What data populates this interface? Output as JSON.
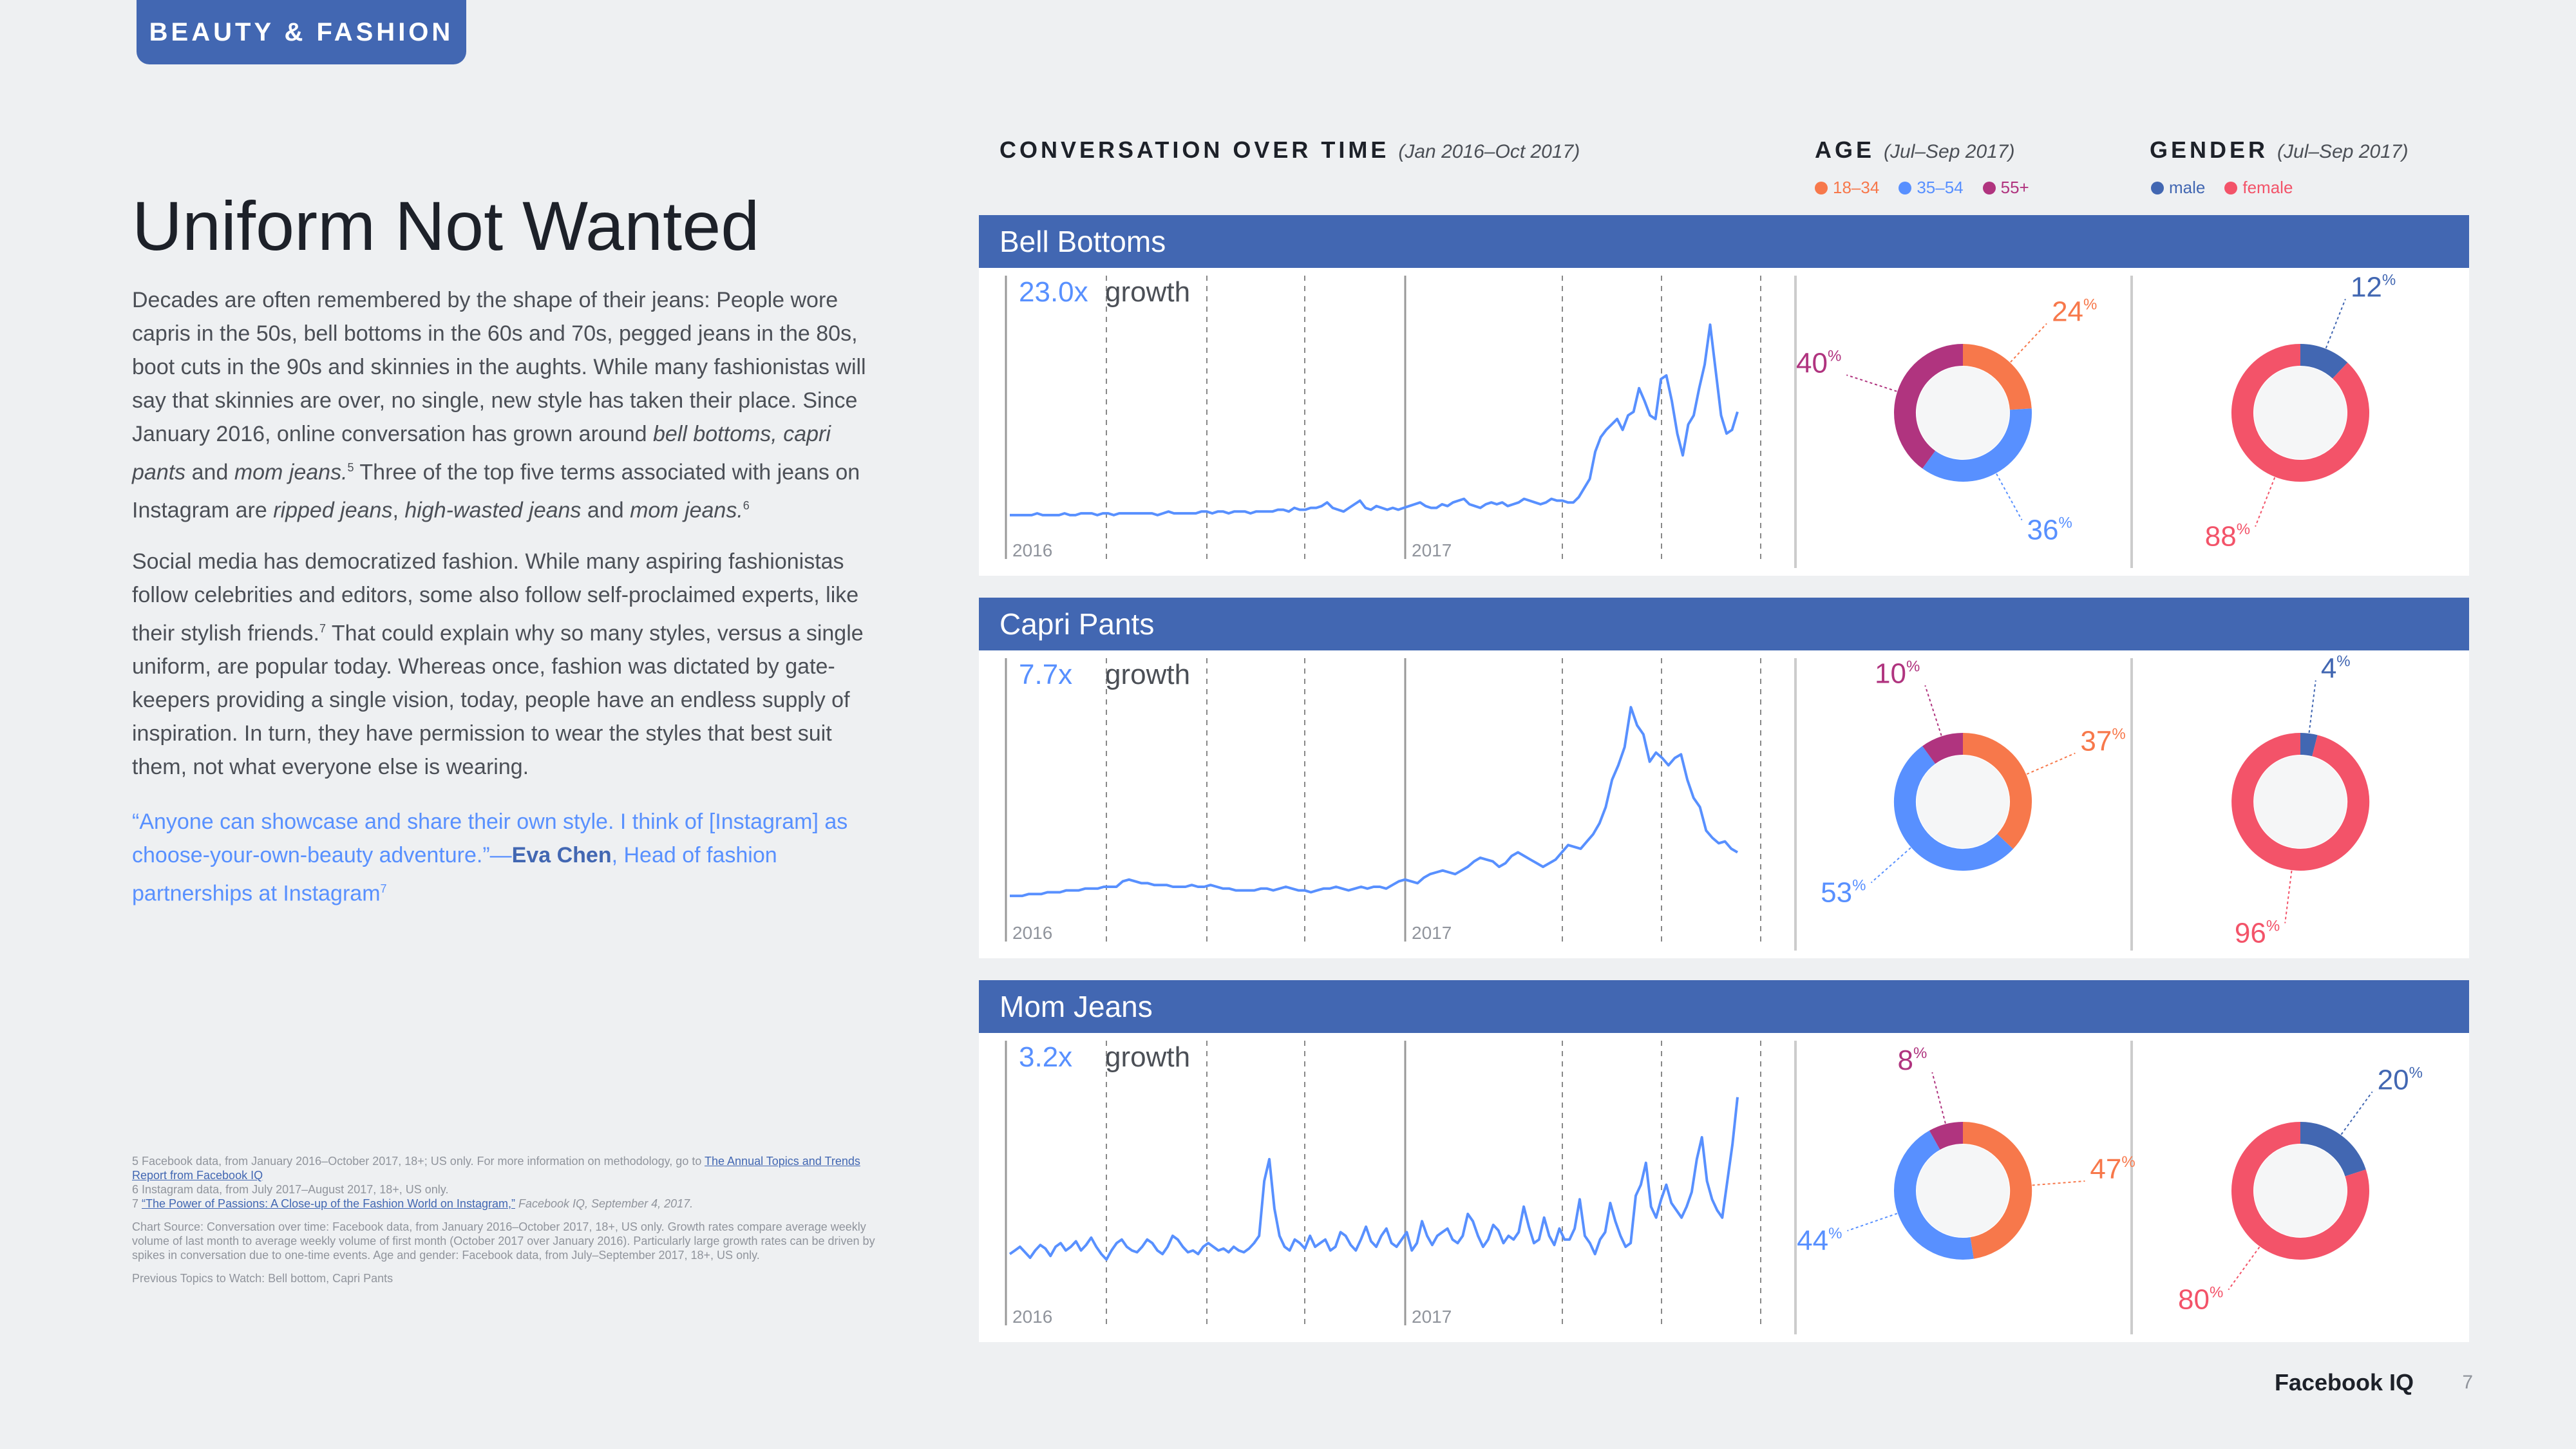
{
  "section_tag": "BEAUTY & FASHION",
  "title": "Uniform Not Wanted",
  "paragraph1": {
    "a": "Decades are often remembered by the shape of their jeans: People wore capris in the 50s, bell bottoms in the 60s and 70s, pegged jeans in the 80s, boot cuts in the 90s and skinnies in the aughts. While many fashionistas will say that skinnies are over, no single, new style has taken their place. Since January 2016, online conversation has grown around ",
    "b": "bell bottoms, capri pants",
    "c": " and ",
    "d": "mom jeans.",
    "e": "5",
    "f": " Three of the top five terms associated with jeans on Instagram are ",
    "g": "ripped jeans",
    "h": ", ",
    "i": "high-wasted jeans",
    "j": " and ",
    "k": "mom jeans.",
    "l": "6"
  },
  "paragraph2": {
    "a": "Social media has democratized fashion. While many aspiring fashionistas follow celebrities and editors, some also follow self-proclaimed experts, like their stylish friends.",
    "b": "7",
    "c": " That could explain why so many styles, versus a single uniform, are popular today. Whereas once, fashion was dictated by gate-keepers providing a single vision, today, people have an endless supply of inspiration. In turn, they have permission to wear the styles that best suit them, not what everyone else is wearing."
  },
  "quote": {
    "text": "“Anyone can showcase and share their own style. I think of [Instagram] as choose-your-own-beauty adventure.”—",
    "author": "Eva Chen",
    "role": ", Head of fashion partnerships at Instagram",
    "sup": "7"
  },
  "footnotes": {
    "fn5_text": "5  Facebook data, from January 2016–October 2017, 18+; US only. For more information on methodology, go to ",
    "fn5_link": "The Annual Topics and Trends Report from Facebook IQ",
    "fn6": "6  Instagram data, from July 2017–August 2017, 18+, US only.",
    "fn7_num": "7  ",
    "fn7_link": "“The Power of Passions: A Close-up of the Fashion World on Instagram,”",
    "fn7_text": " Facebook IQ, September 4, 2017.",
    "chart_source": "Chart Source:  Conversation over time: Facebook data, from January 2016–October 2017, 18+, US only. Growth rates compare average weekly volume of last month to average weekly volume of first month (October 2017 over January 2016). Particularly large growth rates can be driven by spikes in conversation due to one-time events. Age and gender: Facebook data, from July–September 2017, 18+, US only.",
    "previous": "Previous Topics to Watch: Bell bottom, Capri Pants"
  },
  "headers": {
    "conversation": "CONVERSATION OVER TIME",
    "conversation_sub": "(Jan 2016–Oct 2017)",
    "age": "AGE",
    "age_sub": "(Jul–Sep 2017)",
    "gender": "GENDER",
    "gender_sub": "(Jul–Sep 2017)"
  },
  "legend": {
    "age": [
      {
        "label": "18–34",
        "color": "#f7784b"
      },
      {
        "label": "35–54",
        "color": "#5890ff"
      },
      {
        "label": "55+",
        "color": "#b0347f"
      }
    ],
    "gender": [
      {
        "label": "male",
        "color": "#4267b2"
      },
      {
        "label": "female",
        "color": "#f35369"
      }
    ]
  },
  "colors": {
    "brand": "#4267b2",
    "line": "#5890ff",
    "age_18_34": "#f7784b",
    "age_35_54": "#5890ff",
    "age_55": "#b0347f",
    "male": "#4267b2",
    "female": "#f35369"
  },
  "growth_word": "growth",
  "year_labels": [
    "2016",
    "2017"
  ],
  "chart_data": [
    {
      "type": "line",
      "title": "Bell Bottoms",
      "growth": "23.0x",
      "values": [
        5,
        5,
        5,
        5,
        5,
        6,
        5,
        5,
        5,
        5,
        6,
        5,
        5,
        6,
        6,
        6,
        5,
        6,
        6,
        5,
        6,
        6,
        6,
        6,
        6,
        6,
        6,
        5,
        6,
        7,
        6,
        6,
        6,
        6,
        6,
        7,
        7,
        6,
        7,
        7,
        6,
        7,
        7,
        7,
        6,
        7,
        7,
        7,
        7,
        8,
        8,
        7,
        9,
        8,
        8,
        9,
        9,
        10,
        12,
        9,
        8,
        7,
        9,
        11,
        13,
        9,
        8,
        10,
        9,
        8,
        9,
        8,
        9,
        10,
        11,
        12,
        10,
        9,
        9,
        11,
        10,
        12,
        13,
        14,
        11,
        10,
        9,
        11,
        12,
        11,
        12,
        10,
        11,
        12,
        14,
        13,
        12,
        11,
        12,
        14,
        13,
        13,
        12,
        12,
        15,
        20,
        25,
        40,
        48,
        52,
        55,
        58,
        52,
        60,
        62,
        75,
        68,
        60,
        58,
        80,
        82,
        68,
        50,
        38,
        55,
        60,
        75,
        88,
        110,
        85,
        60,
        50,
        52,
        62
      ],
      "ylim": [
        0,
        120
      ]
    },
    {
      "type": "line",
      "title": "Capri Pants",
      "growth": "7.7x",
      "values": [
        6,
        6,
        6,
        7,
        7,
        7,
        8,
        8,
        8,
        9,
        9,
        9,
        10,
        10,
        10,
        11,
        11,
        11,
        14,
        15,
        14,
        13,
        13,
        12,
        12,
        12,
        11,
        11,
        11,
        12,
        11,
        11,
        12,
        11,
        10,
        10,
        9,
        9,
        9,
        9,
        10,
        10,
        9,
        10,
        11,
        10,
        9,
        9,
        8,
        9,
        10,
        10,
        11,
        10,
        9,
        10,
        11,
        10,
        11,
        11,
        10,
        12,
        14,
        15,
        14,
        13,
        16,
        18,
        19,
        20,
        19,
        18,
        20,
        22,
        25,
        27,
        26,
        25,
        22,
        24,
        28,
        30,
        28,
        26,
        24,
        22,
        24,
        26,
        30,
        34,
        33,
        32,
        36,
        40,
        46,
        55,
        70,
        78,
        88,
        110,
        100,
        95,
        80,
        85,
        82,
        78,
        82,
        84,
        70,
        60,
        55,
        42,
        38,
        35,
        36,
        32,
        30
      ],
      "ylim": [
        0,
        120
      ]
    },
    {
      "type": "line",
      "title": "Mom Jeans",
      "growth": "3.2x",
      "values": [
        20,
        22,
        24,
        21,
        18,
        22,
        25,
        23,
        19,
        24,
        26,
        22,
        24,
        27,
        22,
        25,
        29,
        24,
        20,
        17,
        22,
        26,
        28,
        24,
        22,
        21,
        24,
        28,
        26,
        22,
        20,
        24,
        30,
        28,
        24,
        21,
        22,
        20,
        24,
        26,
        24,
        22,
        23,
        21,
        24,
        22,
        21,
        23,
        26,
        30,
        60,
        72,
        45,
        30,
        24,
        22,
        28,
        26,
        23,
        30,
        24,
        26,
        28,
        22,
        24,
        32,
        30,
        25,
        22,
        28,
        35,
        27,
        24,
        30,
        34,
        26,
        24,
        28,
        32,
        22,
        26,
        38,
        30,
        25,
        30,
        32,
        34,
        28,
        26,
        30,
        42,
        38,
        30,
        24,
        28,
        36,
        33,
        26,
        30,
        28,
        32,
        46,
        35,
        26,
        28,
        40,
        30,
        25,
        34,
        28,
        28,
        34,
        50,
        30,
        26,
        20,
        28,
        32,
        48,
        38,
        30,
        24,
        26,
        52,
        58,
        70,
        46,
        40,
        50,
        58,
        48,
        44,
        40,
        46,
        54,
        72,
        84,
        60,
        50,
        44,
        40,
        60,
        80,
        106
      ],
      "ylim": [
        0,
        120
      ]
    }
  ],
  "age_charts": [
    {
      "title": "Bell Bottoms",
      "slices": [
        {
          "label": "18–34",
          "value": 24
        },
        {
          "label": "35–54",
          "value": 36
        },
        {
          "label": "55+",
          "value": 40
        }
      ]
    },
    {
      "title": "Capri Pants",
      "slices": [
        {
          "label": "18–34",
          "value": 37
        },
        {
          "label": "35–54",
          "value": 53
        },
        {
          "label": "55+",
          "value": 10
        }
      ]
    },
    {
      "title": "Mom Jeans",
      "slices": [
        {
          "label": "18–34",
          "value": 47
        },
        {
          "label": "35–54",
          "value": 44
        },
        {
          "label": "55+",
          "value": 8
        }
      ]
    }
  ],
  "gender_charts": [
    {
      "title": "Bell Bottoms",
      "slices": [
        {
          "label": "male",
          "value": 12
        },
        {
          "label": "female",
          "value": 88
        }
      ]
    },
    {
      "title": "Capri Pants",
      "slices": [
        {
          "label": "male",
          "value": 4
        },
        {
          "label": "female",
          "value": 96
        }
      ]
    },
    {
      "title": "Mom Jeans",
      "slices": [
        {
          "label": "male",
          "value": 20
        },
        {
          "label": "female",
          "value": 80
        }
      ]
    }
  ],
  "footer": {
    "brand": "Facebook IQ",
    "page": "7"
  }
}
